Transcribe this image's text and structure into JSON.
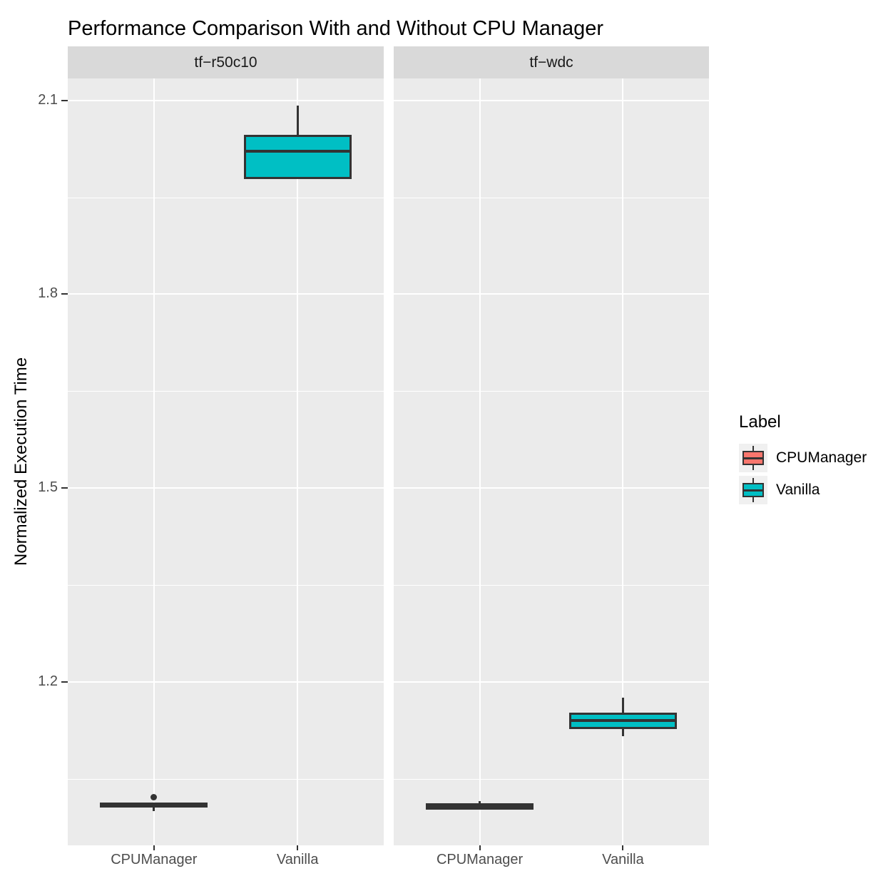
{
  "title": "Performance Comparison With and Without CPU Manager",
  "y_axis": {
    "label": "Normalized Execution Time",
    "tick_labels": [
      "2.1",
      "1.8",
      "1.5",
      "1.2"
    ]
  },
  "x_axis": {
    "categories": [
      "CPUManager",
      "Vanilla"
    ]
  },
  "legend": {
    "title": "Label",
    "items": [
      {
        "label": "CPUManager",
        "color": "#F8766D"
      },
      {
        "label": "Vanilla",
        "color": "#00BFC4"
      }
    ]
  },
  "colors": {
    "cpumanager_fill": "#F8766D",
    "vanilla_fill": "#00BFC4",
    "panel_background": "#EBEBEB",
    "strip_background": "#D9D9D9",
    "gridline": "#FFFFFF",
    "box_outline": "#333333",
    "axis_text": "#4D4D4D",
    "title_text": "#000000"
  },
  "chart_data": {
    "type": "boxplot",
    "title": "Performance Comparison With and Without CPU Manager",
    "ylabel": "Normalized Execution Time",
    "xlabel": "",
    "categories": [
      "CPUManager",
      "Vanilla"
    ],
    "y_major_ticks": [
      2.1,
      1.8,
      1.5,
      1.2
    ],
    "y_minor_ticks": [
      1.95,
      1.65,
      1.35,
      1.05
    ],
    "ylim": [
      0.947,
      2.134
    ],
    "grid": "white major+minor horizontal lines, white vertical lines at category centers, on grey panel",
    "legend_position": "right",
    "facets": [
      {
        "label": "tf−r50c10",
        "boxes": [
          {
            "category": "CPUManager",
            "series": "CPUManager",
            "color": "#F8766D",
            "whisker_low": 1.0,
            "q1": 1.005,
            "median": 1.009,
            "q3": 1.013,
            "whisker_high": 1.013,
            "outliers": [
              1.021
            ]
          },
          {
            "category": "Vanilla",
            "series": "Vanilla",
            "color": "#00BFC4",
            "whisker_low": 1.978,
            "q1": 1.978,
            "median": 2.021,
            "q3": 2.047,
            "whisker_high": 2.092,
            "outliers": []
          }
        ]
      },
      {
        "label": "tf−wdc",
        "boxes": [
          {
            "category": "CPUManager",
            "series": "CPUManager",
            "color": "#F8766D",
            "whisker_low": 1.002,
            "q1": 1.002,
            "median": 1.007,
            "q3": 1.012,
            "whisker_high": 1.016,
            "outliers": []
          },
          {
            "category": "Vanilla",
            "series": "Vanilla",
            "color": "#00BFC4",
            "whisker_low": 1.116,
            "q1": 1.127,
            "median": 1.14,
            "q3": 1.152,
            "whisker_high": 1.176,
            "outliers": []
          }
        ]
      }
    ]
  }
}
